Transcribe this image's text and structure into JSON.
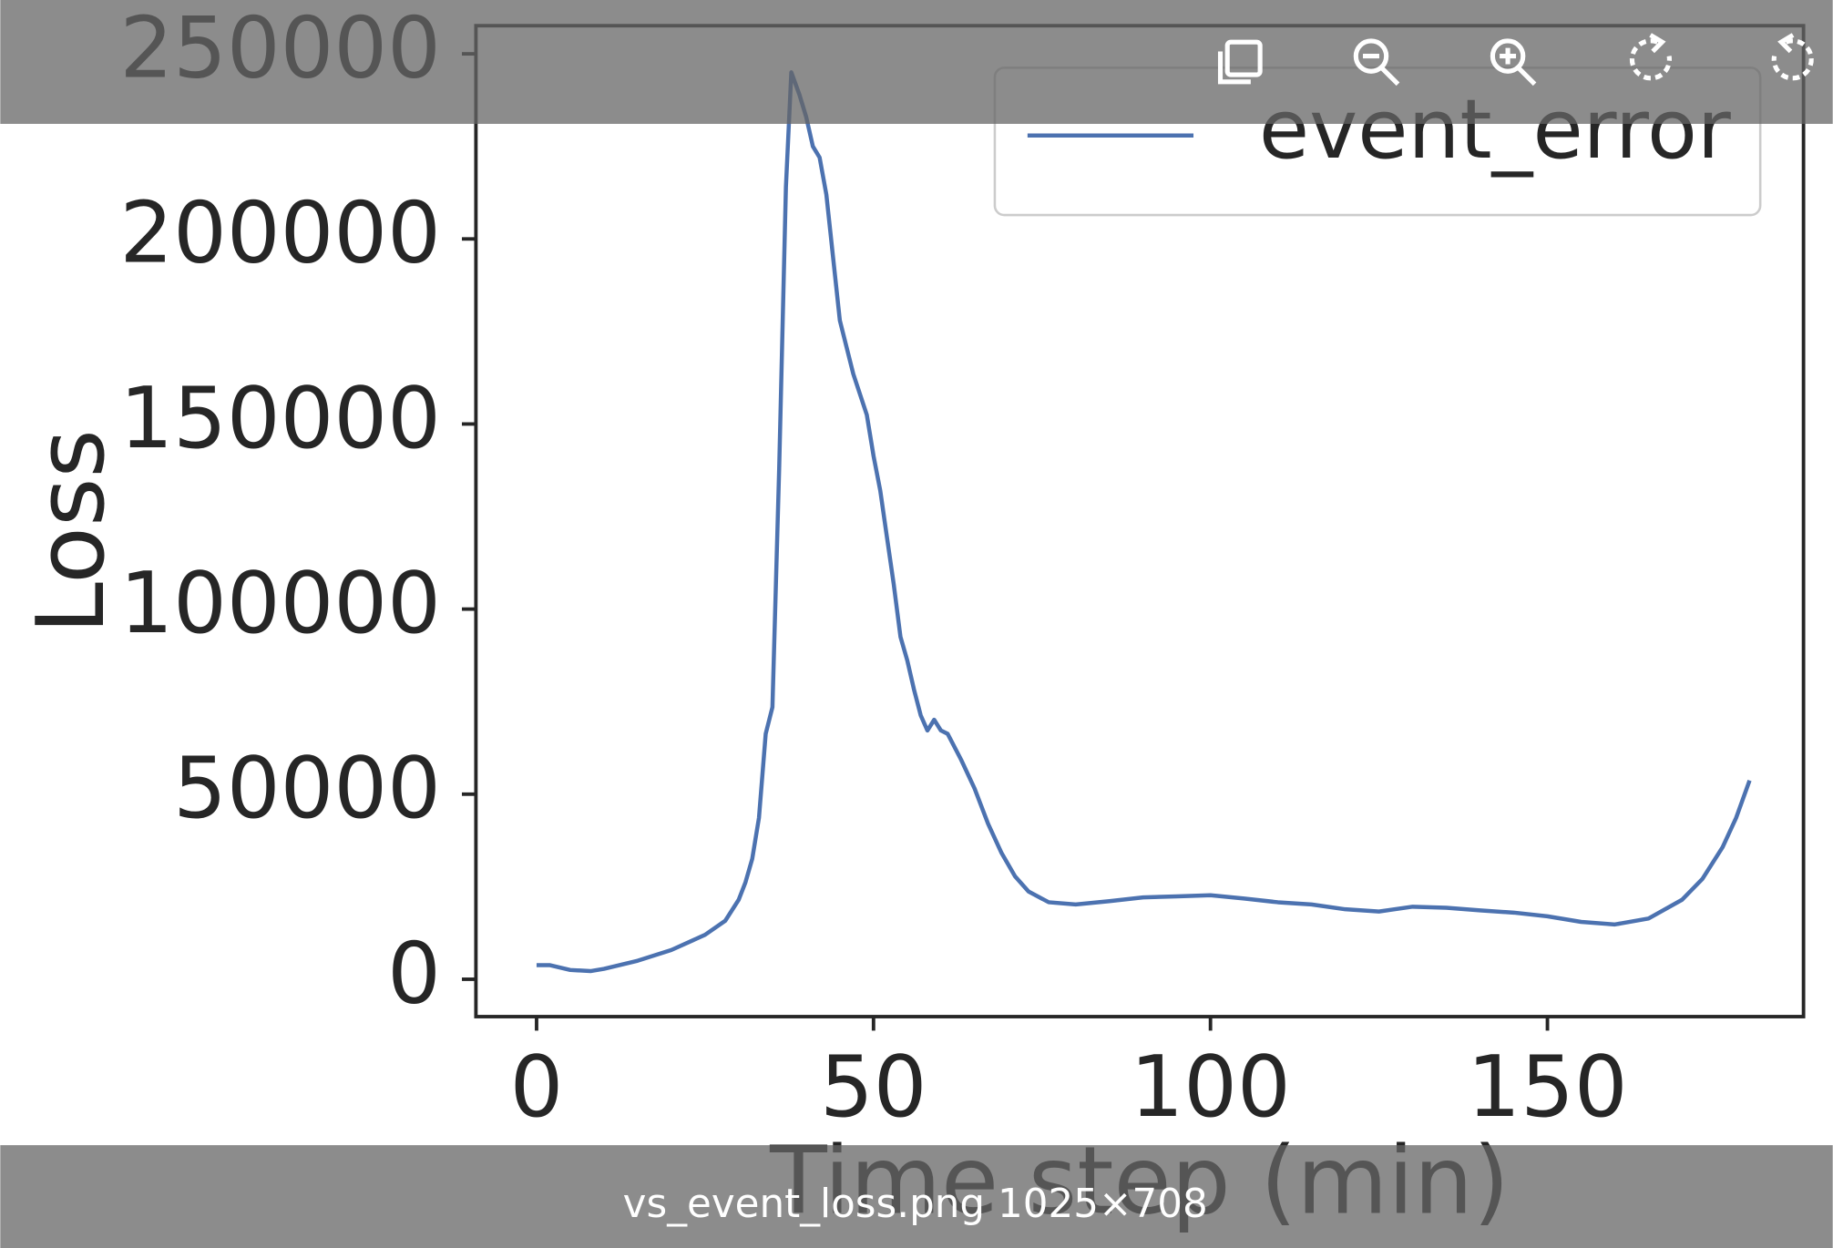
{
  "chart_data": {
    "type": "line",
    "xlabel": "Time step (min)",
    "ylabel": "Loss",
    "x": [
      0,
      2,
      5,
      8,
      10,
      15,
      20,
      25,
      28,
      30,
      31,
      32,
      33,
      34,
      35,
      36,
      37,
      37.8,
      39,
      40,
      41,
      42,
      43,
      44,
      45,
      47,
      49,
      50,
      51,
      52,
      53,
      54,
      55,
      56,
      57,
      58,
      59,
      60,
      61,
      63,
      65,
      67,
      69,
      71,
      73,
      76,
      80,
      85,
      90,
      95,
      100,
      105,
      110,
      115,
      120,
      125,
      130,
      135,
      140,
      145,
      150,
      155,
      160,
      165,
      170,
      173,
      176,
      178,
      180
    ],
    "series": [
      {
        "name": "event_error",
        "color": "#4c72b0",
        "values": [
          3800,
          3800,
          2500,
          2200,
          2800,
          5000,
          7900,
          12000,
          15800,
          21500,
          26200,
          32500,
          43600,
          66300,
          73500,
          138000,
          214000,
          245000,
          239000,
          233000,
          225000,
          222000,
          212000,
          195000,
          178000,
          163500,
          152500,
          141400,
          132000,
          119300,
          106700,
          92500,
          86200,
          78300,
          71300,
          67200,
          70100,
          67200,
          66300,
          59300,
          51500,
          42000,
          34100,
          27800,
          23700,
          20800,
          20200,
          21100,
          22100,
          22400,
          22700,
          21800,
          20800,
          20200,
          18900,
          18300,
          19600,
          19300,
          18600,
          18000,
          17000,
          15500,
          14800,
          16400,
          21500,
          27100,
          35700,
          43600,
          53700
        ]
      }
    ],
    "xlim": [
      -9,
      188
    ],
    "ylim": [
      -10100,
      257600
    ],
    "xticks": [
      0,
      50,
      100,
      150
    ],
    "yticks": [
      0,
      50000,
      100000,
      150000,
      200000,
      250000
    ],
    "grid": false,
    "legend": "upper right"
  },
  "viewer": {
    "caption": "vs_event_loss.png 1025×708"
  }
}
